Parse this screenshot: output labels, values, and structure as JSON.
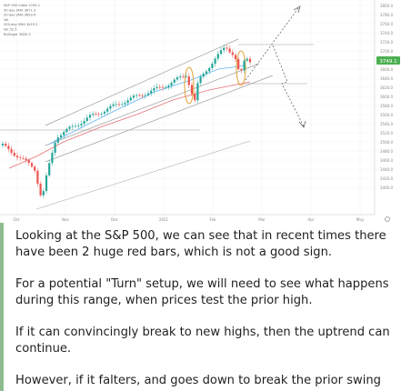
{
  "chart": {
    "legend": [
      "S&P 500 Index  3744.1",
      "50-day SMA  3671.3",
      "20-day SMA  3693.4",
      "Vol",
      "200-day SMA  3419.2",
      "Vol  52.5",
      "Bollinger  3805.3"
    ],
    "price_labels": [
      "3800.0",
      "3780.0",
      "3760.0",
      "3740.0",
      "3720.0",
      "3700.0",
      "3680.0",
      "3660.0",
      "3640.0",
      "3620.0",
      "3600.0",
      "3580.0",
      "3560.0",
      "3540.0",
      "3520.0",
      "3500.0",
      "3480.0",
      "3460.0",
      "3440.0",
      "3420.0",
      "3400.0"
    ],
    "time_labels": [
      "Oct",
      "Nov",
      "Dec",
      "2021",
      "Feb",
      "Mar",
      "Apr",
      "May"
    ],
    "current_price": "3749.1",
    "colors": {
      "up": "#26a69a",
      "down": "#ef5350",
      "ma_red": "#e57373",
      "ma_blue": "#64b5f6",
      "channel": "#9e9e9e",
      "ellipse": "#e0a030",
      "projection": "#555555",
      "price_tag": "#4caf50"
    }
  },
  "article": {
    "p1": "Looking at the S&P 500, we can see that in recent times there have been 2 huge red bars, which is not a good sign.",
    "p2": "For a potential \"Turn\" setup, we will need to see what happens during this range, when prices test the prior high.",
    "p3": "If it can convincingly break to new highs, then the uptrend can continue.",
    "p4": "However, if it falters, and goes down to break the prior swing low,"
  }
}
